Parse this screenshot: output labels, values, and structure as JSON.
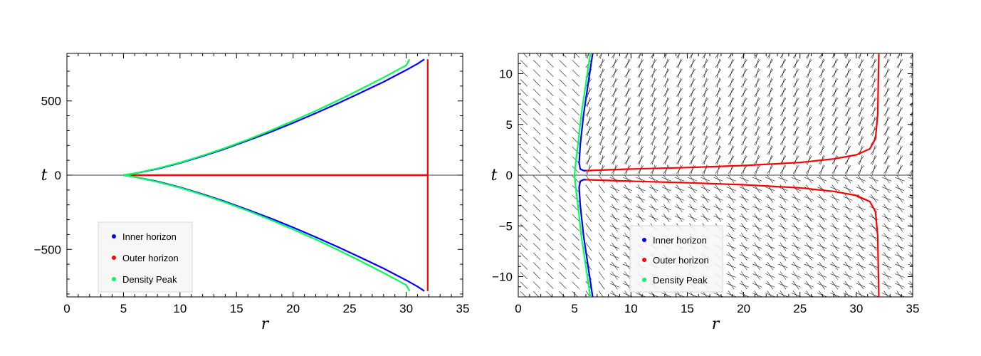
{
  "chart_data": [
    {
      "type": "line",
      "xlabel": "r",
      "ylabel": "t",
      "xlim": [
        0,
        35
      ],
      "ylim": [
        -820,
        820
      ],
      "xticks": [
        0,
        5,
        10,
        15,
        20,
        25,
        30,
        35
      ],
      "xtick_labels": [
        "0",
        "5",
        "10",
        "15",
        "20",
        "25",
        "30",
        "35"
      ],
      "yticks": [
        -500,
        0,
        500
      ],
      "ytick_labels": [
        "−500",
        "0",
        "500"
      ],
      "legend_position": "bottom-left",
      "series": [
        {
          "name": "Inner horizon",
          "color": "#0000ff",
          "x": [
            5.0,
            6,
            8,
            10,
            12,
            14,
            16,
            18,
            20,
            22,
            24,
            26,
            28,
            30,
            31,
            31.6
          ],
          "y": [
            0,
            12,
            42,
            82,
            128,
            178,
            233,
            290,
            352,
            417,
            485,
            556,
            628,
            708,
            750,
            780
          ]
        },
        {
          "name": "Outer horizon",
          "color": "#ff0000",
          "x": [
            5.0,
            31.9,
            31.9
          ],
          "y": [
            0,
            0,
            780
          ]
        },
        {
          "name": "Density Peak",
          "color": "#00ff55",
          "x": [
            5.0,
            6,
            8,
            10,
            12,
            14,
            16,
            18,
            20,
            22,
            24,
            26,
            28,
            30,
            30.3
          ],
          "y": [
            0,
            12,
            45,
            85,
            132,
            183,
            240,
            300,
            365,
            433,
            505,
            580,
            658,
            740,
            780
          ]
        }
      ]
    },
    {
      "type": "line",
      "xlabel": "r",
      "ylabel": "t",
      "xlim": [
        0,
        35
      ],
      "ylim": [
        -12,
        12
      ],
      "xticks": [
        0,
        5,
        10,
        15,
        20,
        25,
        30,
        35
      ],
      "xtick_labels": [
        "0",
        "5",
        "10",
        "15",
        "20",
        "25",
        "30",
        "35"
      ],
      "yticks": [
        -10,
        -5,
        0,
        5,
        10
      ],
      "ytick_labels": [
        "−10",
        "−5",
        "0",
        "5",
        "10"
      ],
      "legend_position": "bottom-center",
      "direction_field": true,
      "series": [
        {
          "name": "Inner horizon",
          "color": "#0000ff",
          "x": [
            6.6,
            6.2,
            5.8,
            5.5,
            5.4,
            5.5,
            5.8,
            6.0
          ],
          "y": [
            12,
            9,
            6,
            3,
            1.2,
            0.6,
            0.45,
            0.45
          ]
        },
        {
          "name": "Outer horizon",
          "color": "#ff0000",
          "x": [
            6.0,
            10,
            15,
            20,
            25,
            28,
            30,
            31.2,
            31.7,
            31.9,
            32.0
          ],
          "y": [
            0.45,
            0.6,
            0.75,
            0.95,
            1.25,
            1.6,
            2.0,
            2.6,
            3.6,
            6,
            12
          ]
        },
        {
          "name": "Density Peak",
          "color": "#00ff55",
          "x": [
            6.4,
            6.0,
            5.6,
            5.3,
            5.1,
            5.0
          ],
          "y": [
            12,
            9,
            6,
            3,
            1.2,
            0
          ]
        }
      ]
    }
  ]
}
